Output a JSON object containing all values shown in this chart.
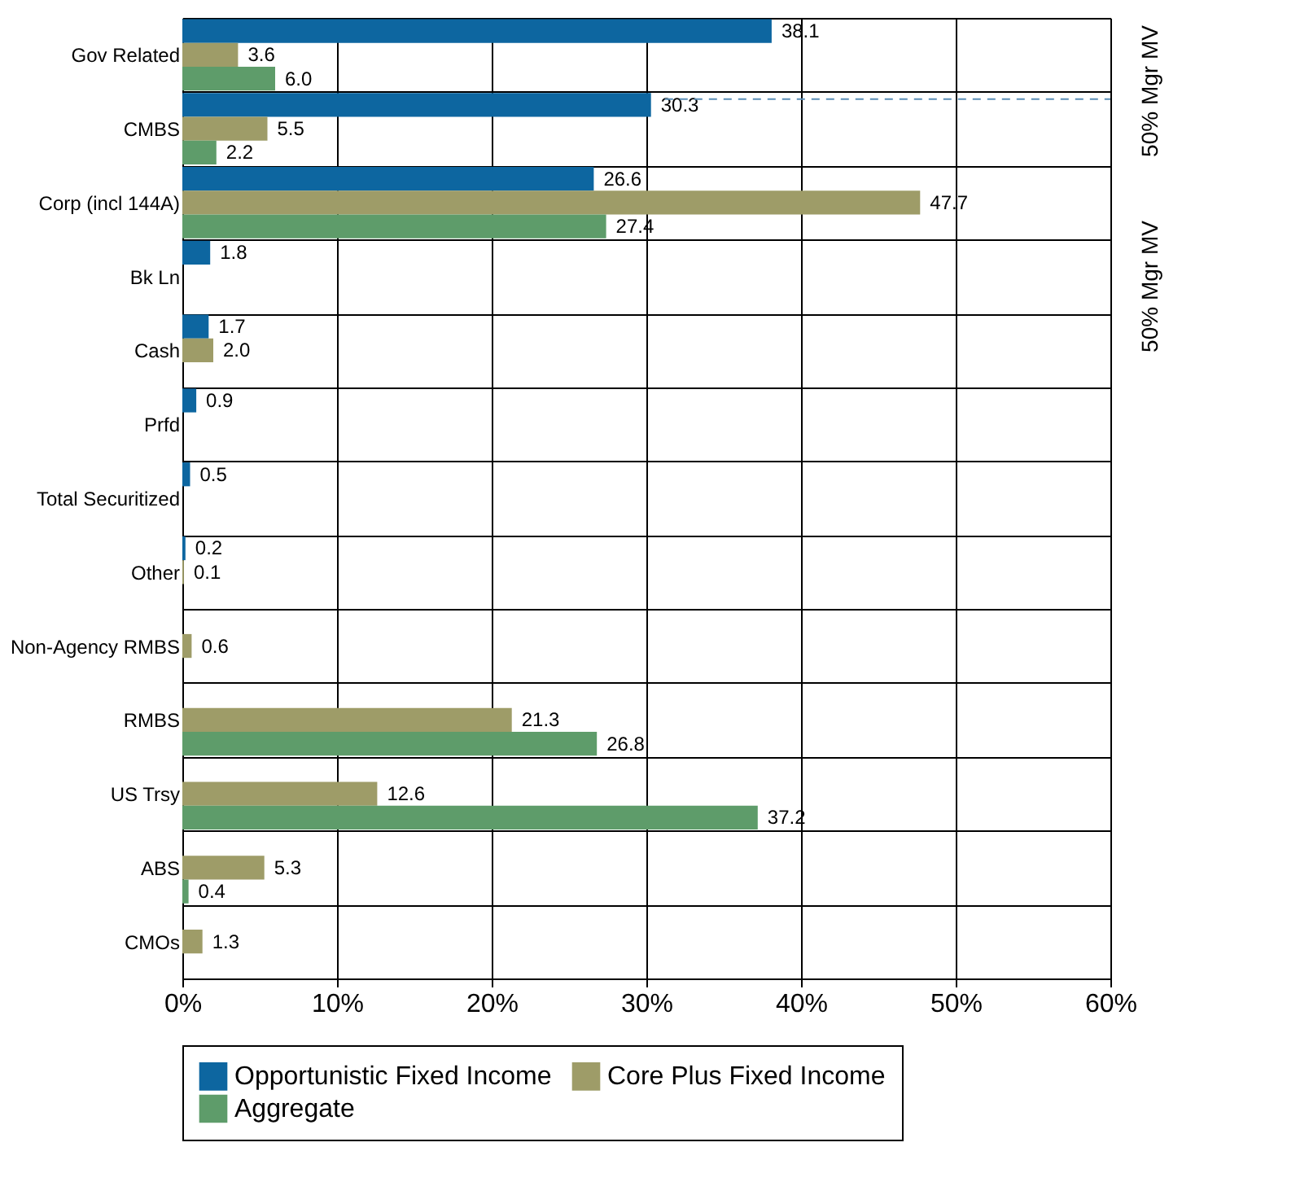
{
  "chart_data": {
    "type": "bar",
    "orientation": "horizontal",
    "categories": [
      "Gov Related",
      "CMBS",
      "Corp (incl 144A)",
      "Bk Ln",
      "Cash",
      "Prfd",
      "Total Securitized",
      "Other",
      "Non-Agency RMBS",
      "RMBS",
      "US Trsy",
      "ABS",
      "CMOs"
    ],
    "series": [
      {
        "name": "Opportunistic Fixed Income",
        "color": "#0d66a0",
        "values": [
          38.1,
          30.3,
          26.6,
          1.8,
          1.7,
          0.9,
          0.5,
          0.2,
          null,
          null,
          null,
          null,
          null
        ],
        "value_labels": [
          "38.1",
          "30.3",
          "26.6",
          "1.8",
          "1.7",
          "0.9",
          "0.5",
          "0.2",
          null,
          null,
          null,
          null,
          null
        ]
      },
      {
        "name": "Core Plus Fixed Income",
        "color": "#9e9c68",
        "values": [
          3.6,
          5.5,
          47.7,
          null,
          2.0,
          null,
          null,
          0.1,
          0.6,
          21.3,
          12.6,
          5.3,
          1.3
        ],
        "value_labels": [
          "3.6",
          "5.5",
          "47.7",
          null,
          "2.0",
          null,
          null,
          "0.1",
          "0.6",
          "21.3",
          "12.6",
          "5.3",
          "1.3"
        ]
      },
      {
        "name": "Aggregate",
        "color": "#5e9c6a",
        "values": [
          6.0,
          2.2,
          27.4,
          null,
          null,
          null,
          null,
          null,
          null,
          26.8,
          37.2,
          0.4,
          null
        ],
        "value_labels": [
          "6.0",
          "2.2",
          "27.4",
          null,
          null,
          null,
          null,
          null,
          null,
          "26.8",
          "37.2",
          "0.4",
          null
        ]
      }
    ],
    "xlim": [
      0,
      60
    ],
    "xticks": [
      {
        "value": 0,
        "label": "0%"
      },
      {
        "value": 10,
        "label": "10%"
      },
      {
        "value": 20,
        "label": "20%"
      },
      {
        "value": 30,
        "label": "30%"
      },
      {
        "value": 40,
        "label": "40%"
      },
      {
        "value": 50,
        "label": "50%"
      },
      {
        "value": 60,
        "label": "60%"
      }
    ],
    "grid": true,
    "legend": "bottom",
    "ref_lines": [
      {
        "axis": "y",
        "value": "CMBS",
        "color": "#5b8fb8",
        "line_style": "dashed"
      }
    ],
    "annotations": [
      "50% Mgr MV",
      "50% Mgr MV"
    ]
  }
}
